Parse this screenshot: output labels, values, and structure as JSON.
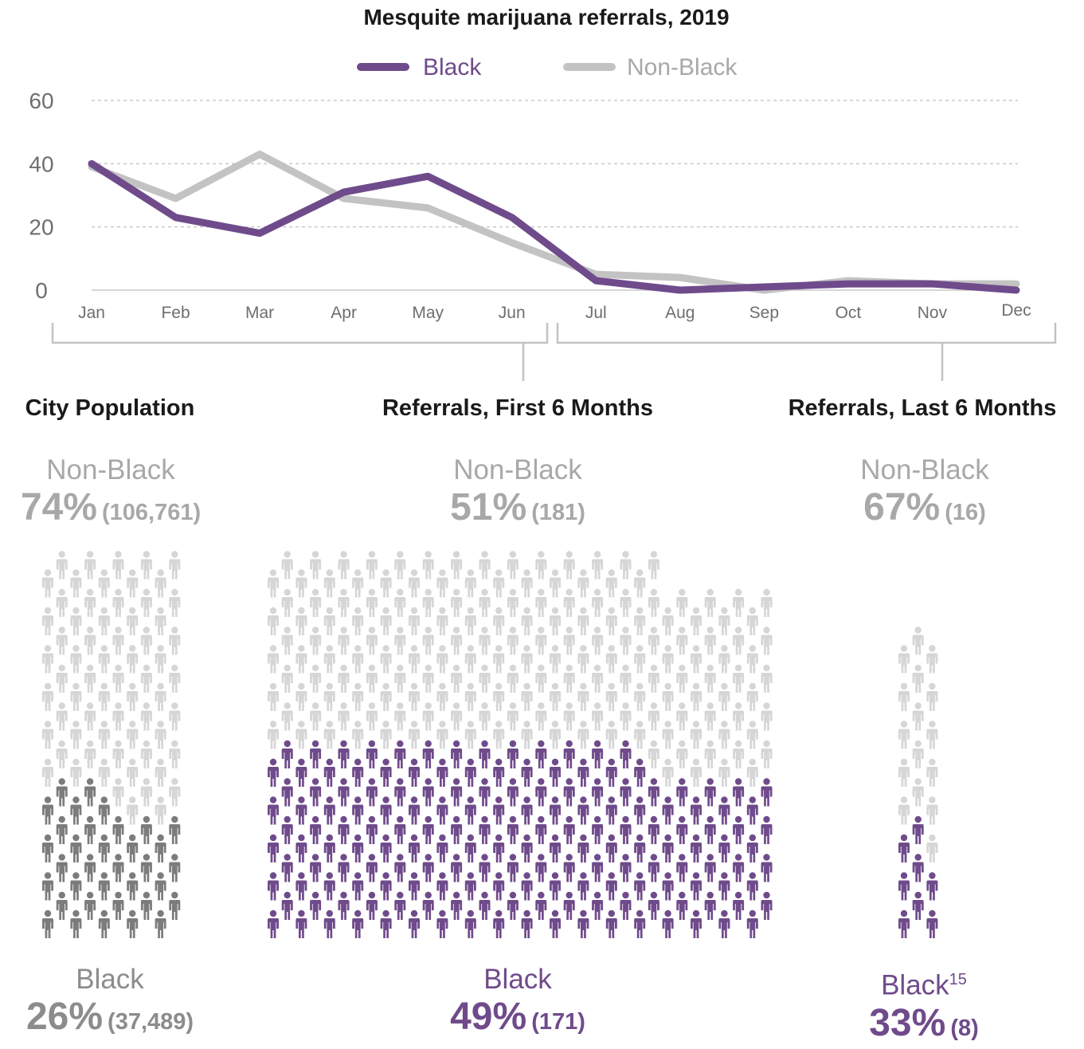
{
  "colors": {
    "black_series": "#6f4b8b",
    "nonblack_series": "#c3c3c3",
    "icon_nonblack": "#d6d6d6",
    "icon_black_city": "#7c7c7c",
    "icon_black": "#6f4b8b",
    "grid": "#c8c8c8",
    "axis_text": "#6e6e6e"
  },
  "chart_data": {
    "type": "line",
    "title": "Mesquite marijuana referrals, 2019",
    "xlabel": "",
    "ylabel": "",
    "categories": [
      "Jan",
      "Feb",
      "Mar",
      "Apr",
      "May",
      "Jun",
      "Jul",
      "Aug",
      "Sep",
      "Oct",
      "Nov",
      "Dec"
    ],
    "yticks": [
      0,
      20,
      40,
      60
    ],
    "ylim": [
      0,
      60
    ],
    "grid": true,
    "legend_position": "top",
    "series": [
      {
        "name": "Black",
        "color": "#6f4b8b",
        "values": [
          40,
          23,
          18,
          31,
          36,
          23,
          3,
          0,
          1,
          2,
          2,
          0
        ]
      },
      {
        "name": "Non-Black",
        "color": "#c3c3c3",
        "values": [
          39,
          29,
          43,
          29,
          26,
          15,
          5,
          4,
          0,
          3,
          2,
          2
        ]
      }
    ]
  },
  "panels": [
    {
      "title": "City Population",
      "nonblack": {
        "name": "Non-Black",
        "pct": "74%",
        "count": "(106,761)"
      },
      "black": {
        "name": "Black",
        "pct": "26%",
        "count": "(37,489)",
        "note": ""
      }
    },
    {
      "title": "Referrals, First 6 Months",
      "nonblack": {
        "name": "Non-Black",
        "pct": "51%",
        "count": "(181)"
      },
      "black": {
        "name": "Black",
        "pct": "49%",
        "count": "(171)",
        "note": ""
      }
    },
    {
      "title": "Referrals, Last 6 Months",
      "nonblack": {
        "name": "Non-Black",
        "pct": "67%",
        "count": "(16)"
      },
      "black": {
        "name": "Black",
        "pct": "33%",
        "count": "(8)",
        "note": "15"
      }
    }
  ],
  "icon_grids": [
    {
      "nonblack_icons": 97,
      "black_icons": 35
    },
    {
      "nonblack_icons": 181,
      "black_icons": 171
    },
    {
      "nonblack_icons": 16,
      "black_icons": 8
    }
  ]
}
